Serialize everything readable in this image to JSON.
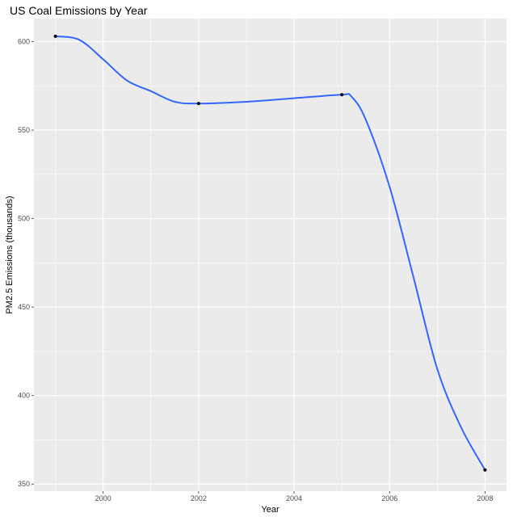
{
  "chart_data": {
    "type": "line",
    "title": "US Coal Emissions by Year",
    "xlabel": "Year",
    "ylabel": "PM2.5 Emissions (thousands)",
    "x_ticks": [
      2000,
      2002,
      2004,
      2006,
      2008
    ],
    "y_ticks": [
      350,
      400,
      450,
      500,
      550,
      600
    ],
    "xlim": [
      1998.55,
      2008.45
    ],
    "ylim": [
      346,
      613
    ],
    "grid": true,
    "legend": "none",
    "points": [
      {
        "x": 1999,
        "y": 603
      },
      {
        "x": 2002,
        "y": 565
      },
      {
        "x": 2005,
        "y": 570
      },
      {
        "x": 2008,
        "y": 358
      }
    ],
    "smooth_line": [
      {
        "x": 1999,
        "y": 603
      },
      {
        "x": 1999.5,
        "y": 601
      },
      {
        "x": 2000,
        "y": 590
      },
      {
        "x": 2000.5,
        "y": 578
      },
      {
        "x": 2001,
        "y": 572
      },
      {
        "x": 2001.5,
        "y": 566
      },
      {
        "x": 2002,
        "y": 565
      },
      {
        "x": 2003,
        "y": 566
      },
      {
        "x": 2004,
        "y": 568
      },
      {
        "x": 2005,
        "y": 570
      },
      {
        "x": 2005.2,
        "y": 569
      },
      {
        "x": 2005.5,
        "y": 556
      },
      {
        "x": 2006,
        "y": 518
      },
      {
        "x": 2006.5,
        "y": 467
      },
      {
        "x": 2007,
        "y": 415
      },
      {
        "x": 2007.5,
        "y": 382
      },
      {
        "x": 2008,
        "y": 358
      }
    ],
    "colors": {
      "panel": "#ebebeb",
      "grid_major": "#ffffff",
      "line": "#3366ff",
      "point": "#000000"
    }
  }
}
